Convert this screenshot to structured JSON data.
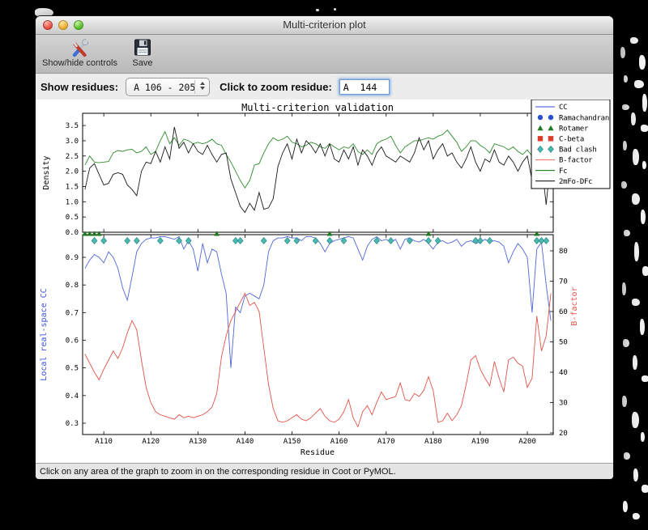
{
  "window": {
    "title": "Multi-criterion plot"
  },
  "toolbar": {
    "show_hide_label": "Show/hide controls",
    "save_label": "Save"
  },
  "controls": {
    "show_residues_label": "Show residues:",
    "residue_range_value": "A 106 - 205",
    "zoom_residue_label": "Click to zoom residue:",
    "zoom_residue_value": "A  144"
  },
  "statusbar": {
    "message": "Click on any area of the graph to zoom in on the corresponding residue in Coot or PyMOL."
  },
  "chart_data": {
    "type": "line",
    "title": "Multi-criterion validation",
    "xlabel": "Residue",
    "xlim": [
      105.5,
      205.5
    ],
    "x_ticks": [
      "A110",
      "A120",
      "A130",
      "A140",
      "A150",
      "A160",
      "A170",
      "A180",
      "A190",
      "A200"
    ],
    "x_tick_residues": [
      110,
      120,
      130,
      140,
      150,
      160,
      170,
      180,
      190,
      200
    ],
    "x": [
      106,
      107,
      108,
      109,
      110,
      111,
      112,
      113,
      114,
      115,
      116,
      117,
      118,
      119,
      120,
      121,
      122,
      123,
      124,
      125,
      126,
      127,
      128,
      129,
      130,
      131,
      132,
      133,
      134,
      135,
      136,
      137,
      138,
      139,
      140,
      141,
      142,
      143,
      144,
      145,
      146,
      147,
      148,
      149,
      150,
      151,
      152,
      153,
      154,
      155,
      156,
      157,
      158,
      159,
      160,
      161,
      162,
      163,
      164,
      165,
      166,
      167,
      168,
      169,
      170,
      171,
      172,
      173,
      174,
      175,
      176,
      177,
      178,
      179,
      180,
      181,
      182,
      183,
      184,
      185,
      186,
      187,
      188,
      189,
      190,
      191,
      192,
      193,
      194,
      195,
      196,
      197,
      198,
      199,
      200,
      201,
      202,
      203,
      204,
      205
    ],
    "top_plot": {
      "ylabel": "Density",
      "ylim": [
        0,
        3.9
      ],
      "yticks": [
        0.0,
        0.5,
        1.0,
        1.5,
        2.0,
        2.5,
        3.0,
        3.5
      ],
      "series": [
        {
          "name": "Fc",
          "color": "#2f8b2f",
          "values": [
            2.2,
            2.5,
            2.3,
            2.28,
            2.3,
            2.32,
            2.6,
            2.68,
            2.65,
            2.7,
            2.72,
            2.6,
            2.65,
            2.8,
            2.55,
            2.65,
            3.0,
            3.3,
            2.9,
            3.1,
            2.85,
            3.05,
            3.0,
            2.9,
            2.95,
            2.9,
            2.95,
            3.05,
            2.9,
            2.85,
            2.55,
            2.3,
            2.0,
            1.7,
            1.45,
            1.7,
            2.2,
            2.25,
            2.6,
            2.9,
            3.1,
            3.0,
            3.05,
            3.15,
            2.95,
            2.9,
            2.8,
            2.85,
            2.95,
            2.9,
            2.8,
            2.75,
            2.9,
            2.8,
            2.7,
            2.8,
            2.75,
            2.9,
            2.65,
            2.55,
            2.7,
            2.55,
            2.9,
            3.0,
            3.05,
            3.15,
            2.85,
            2.6,
            2.8,
            2.9,
            3.0,
            3.0,
            3.05,
            3.1,
            3.05,
            3.15,
            3.2,
            3.35,
            3.15,
            2.95,
            2.65,
            2.8,
            3.0,
            3.0,
            2.85,
            2.75,
            2.6,
            2.9,
            2.85,
            2.8,
            2.7,
            2.8,
            2.65,
            2.55,
            2.7,
            2.5,
            2.4,
            2.6,
            2.45,
            2.5
          ]
        },
        {
          "name": "2mFo-DFc",
          "color": "#1a1a1a",
          "values": [
            1.4,
            2.1,
            2.25,
            1.9,
            1.55,
            1.6,
            1.9,
            1.95,
            1.9,
            1.55,
            1.4,
            1.2,
            2.0,
            2.3,
            2.25,
            2.65,
            2.3,
            2.8,
            2.4,
            3.45,
            2.75,
            2.95,
            2.6,
            2.9,
            2.65,
            2.55,
            2.85,
            2.55,
            2.3,
            2.55,
            2.6,
            1.75,
            1.3,
            0.85,
            0.65,
            0.95,
            0.72,
            1.3,
            0.75,
            0.8,
            1.1,
            2.15,
            2.6,
            2.9,
            2.4,
            3.05,
            2.6,
            3.0,
            2.85,
            2.6,
            2.9,
            2.5,
            2.9,
            2.4,
            2.3,
            2.7,
            2.4,
            2.8,
            2.2,
            2.7,
            2.5,
            2.2,
            2.6,
            2.8,
            2.5,
            2.4,
            2.3,
            2.5,
            2.4,
            2.3,
            2.6,
            3.1,
            2.7,
            3.0,
            2.4,
            2.7,
            2.9,
            2.5,
            2.6,
            2.3,
            2.1,
            2.4,
            2.8,
            2.3,
            2.0,
            2.4,
            2.3,
            2.7,
            2.3,
            2.2,
            2.5,
            2.3,
            2.0,
            2.3,
            2.5,
            1.7,
            2.4,
            2.3,
            0.9,
            2.5
          ]
        }
      ]
    },
    "bottom_plot": {
      "left_ylabel": "Local real-space CC",
      "left_ylabel_color": "#3b4fd8",
      "left_ylim": [
        0.259,
        0.982
      ],
      "left_yticks": [
        0.3,
        0.4,
        0.5,
        0.6,
        0.7,
        0.8,
        0.9
      ],
      "right_ylabel": "B-factor",
      "right_ylabel_color": "#e0544a",
      "right_ylim": [
        19.47,
        85.33
      ],
      "right_yticks": [
        20,
        30,
        40,
        50,
        60,
        70,
        80
      ],
      "series": [
        {
          "name": "CC",
          "axis": "left",
          "color": "#5166d6",
          "values": [
            0.86,
            0.89,
            0.91,
            0.9,
            0.88,
            0.92,
            0.9,
            0.86,
            0.79,
            0.745,
            0.83,
            0.92,
            0.95,
            0.965,
            0.97,
            0.97,
            0.975,
            0.975,
            0.97,
            0.965,
            0.975,
            0.93,
            0.96,
            0.93,
            0.85,
            0.95,
            0.88,
            0.93,
            0.92,
            0.84,
            0.77,
            0.5,
            0.72,
            0.7,
            0.76,
            0.77,
            0.76,
            0.75,
            0.8,
            0.92,
            0.96,
            0.97,
            0.97,
            0.975,
            0.97,
            0.97,
            0.96,
            0.975,
            0.975,
            0.97,
            0.95,
            0.92,
            0.95,
            0.96,
            0.965,
            0.97,
            0.975,
            0.97,
            0.93,
            0.89,
            0.94,
            0.965,
            0.975,
            0.96,
            0.965,
            0.955,
            0.965,
            0.93,
            0.965,
            0.97,
            0.96,
            0.955,
            0.965,
            0.95,
            0.93,
            0.955,
            0.96,
            0.95,
            0.955,
            0.965,
            0.94,
            0.955,
            0.96,
            0.95,
            0.955,
            0.965,
            0.955,
            0.96,
            0.955,
            0.94,
            0.88,
            0.92,
            0.95,
            0.93,
            0.9,
            0.7,
            0.93,
            0.955,
            0.8,
            0.67
          ]
        },
        {
          "name": "B-factor",
          "axis": "right",
          "color": "#e0544a",
          "values": [
            46,
            43,
            40,
            37.5,
            41,
            44,
            47,
            44.5,
            48,
            53,
            57,
            54,
            44,
            35,
            30,
            27,
            26,
            25.5,
            25,
            24.5,
            26,
            25,
            25.5,
            25,
            25.5,
            26,
            27,
            28.5,
            33,
            45,
            52,
            57,
            60,
            63,
            66,
            62,
            63,
            60,
            48,
            36,
            28,
            24,
            23.5,
            24,
            25,
            26,
            24.5,
            24,
            25,
            26.5,
            28,
            25.5,
            24,
            23.5,
            24.5,
            27,
            31,
            25,
            22,
            27,
            29,
            26,
            30,
            33.5,
            31,
            31.5,
            32,
            36.5,
            31,
            30.5,
            33,
            32,
            34,
            38.5,
            34,
            23.5,
            24,
            26.5,
            24,
            26,
            29,
            36,
            44,
            45.5,
            41,
            38,
            35.5,
            43.5,
            38,
            33.5,
            44,
            45,
            43,
            42,
            35,
            38,
            58.5,
            47,
            52,
            66
          ]
        }
      ],
      "markers": [
        {
          "name": "Ramachandran",
          "shape": "circle",
          "color": "#2b50cc",
          "residues": []
        },
        {
          "name": "Rotamer",
          "shape": "triangle",
          "color": "#1f7a1f",
          "residues": [
            106,
            107,
            108,
            109,
            134,
            158,
            179,
            202
          ]
        },
        {
          "name": "C-beta",
          "shape": "square",
          "color": "#dd3c2c",
          "residues": []
        },
        {
          "name": "Bad clash",
          "shape": "diamond",
          "color": "#4cb8b2",
          "residues": [
            108,
            110,
            115,
            117,
            122,
            126,
            128,
            138,
            139,
            144,
            149,
            151,
            155,
            158,
            161,
            168,
            171,
            175,
            179,
            181,
            189,
            190,
            192,
            202,
            203,
            204
          ]
        }
      ]
    },
    "legend": {
      "position": "top-right",
      "entries": [
        {
          "label": "CC",
          "type": "line",
          "color": "#5a6fdc"
        },
        {
          "label": "Ramachandran",
          "type": "circle",
          "color": "#2b50cc"
        },
        {
          "label": "Rotamer",
          "type": "triangle",
          "color": "#1f7a1f"
        },
        {
          "label": "C-beta",
          "type": "square",
          "color": "#dd3c2c"
        },
        {
          "label": "Bad clash",
          "type": "diamond",
          "color": "#4cb8b2"
        },
        {
          "label": "B-factor",
          "type": "line",
          "color": "#f08273"
        },
        {
          "label": "Fc",
          "type": "line",
          "color": "#2f8b2f"
        },
        {
          "label": "2mFo-DFc",
          "type": "line",
          "color": "#1a1a1a"
        }
      ]
    }
  }
}
